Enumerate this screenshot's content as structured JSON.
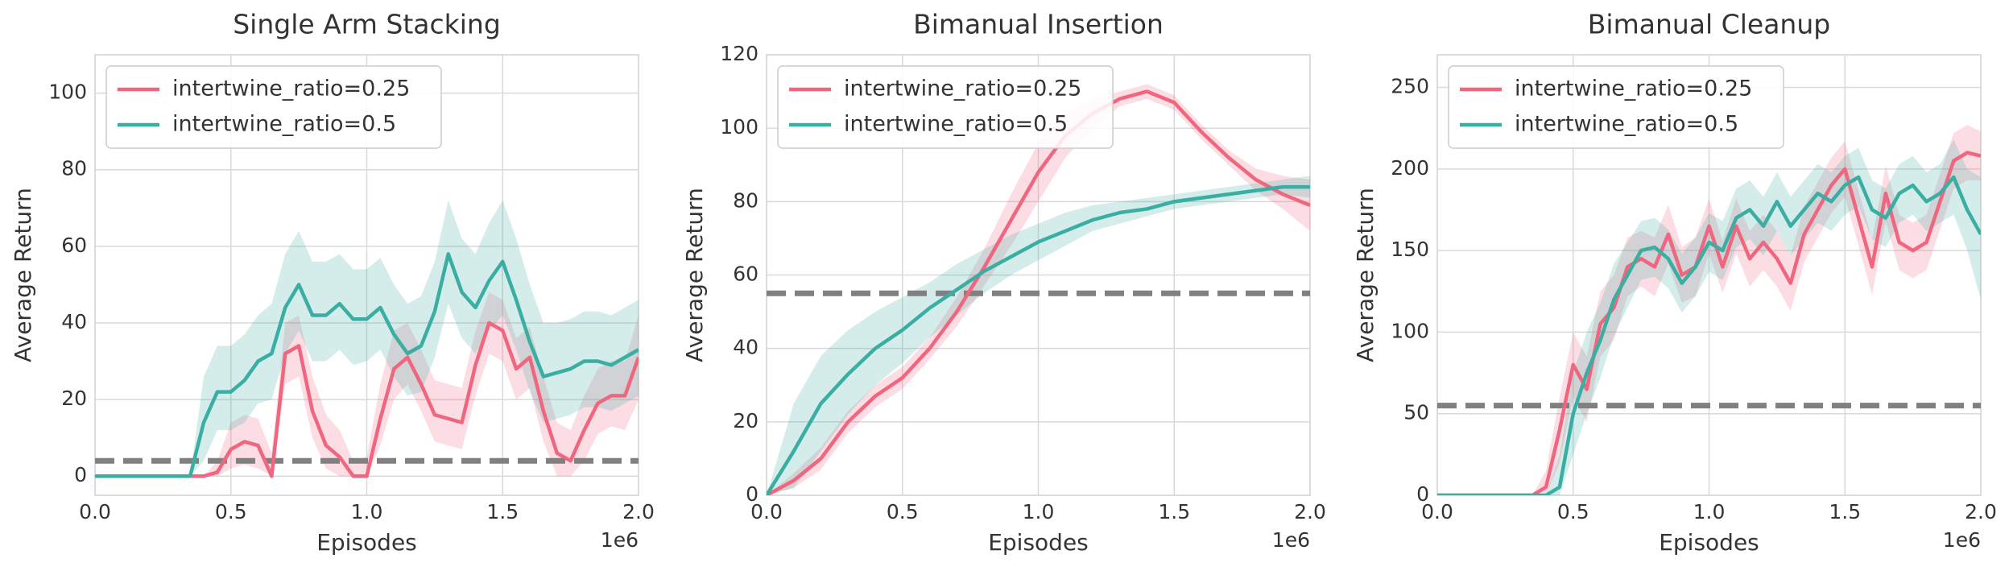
{
  "chart_data": [
    {
      "type": "line",
      "title": "Single Arm Stacking",
      "x_label": "Episodes",
      "y_label": "Average Return",
      "x_offset_label": "1e6",
      "x": [
        0,
        0.05,
        0.1,
        0.15,
        0.2,
        0.25,
        0.3,
        0.35,
        0.4,
        0.45,
        0.5,
        0.55,
        0.6,
        0.65,
        0.7,
        0.75,
        0.8,
        0.85,
        0.9,
        0.95,
        1.0,
        1.05,
        1.1,
        1.15,
        1.2,
        1.25,
        1.3,
        1.35,
        1.4,
        1.45,
        1.5,
        1.55,
        1.6,
        1.65,
        1.7,
        1.75,
        1.8,
        1.85,
        1.9,
        1.95,
        2.0
      ],
      "xlim": [
        0,
        2
      ],
      "xticks": [
        {
          "value": 0,
          "label": "0.0"
        },
        {
          "value": 0.5,
          "label": "0.5"
        },
        {
          "value": 1,
          "label": "1.0"
        },
        {
          "value": 1.5,
          "label": "1.5"
        },
        {
          "value": 2,
          "label": "2.0"
        }
      ],
      "ylim": [
        -5,
        110
      ],
      "yticks": [
        0,
        20,
        40,
        60,
        80,
        100
      ],
      "grid": true,
      "legend": "upper left",
      "hline": {
        "value": 4,
        "color": "#808080"
      },
      "series": [
        {
          "name": "intertwine_ratio=0.25",
          "color": "#f0667f",
          "values": [
            0,
            0,
            0,
            0,
            0,
            0,
            0,
            0,
            0,
            1,
            7,
            9,
            8,
            0,
            32,
            34,
            17,
            8,
            5,
            0,
            0,
            15,
            28,
            31,
            24,
            16,
            15,
            14,
            29,
            40,
            38,
            28,
            31,
            17,
            6,
            4,
            12,
            19,
            21,
            21,
            31
          ],
          "lower": [
            0,
            0,
            0,
            0,
            0,
            0,
            0,
            0,
            0,
            0,
            2,
            3,
            2,
            0,
            24,
            26,
            10,
            2,
            0,
            0,
            0,
            8,
            20,
            24,
            17,
            9,
            8,
            7,
            21,
            32,
            30,
            20,
            23,
            9,
            0,
            0,
            4,
            11,
            13,
            12,
            20
          ],
          "upper": [
            0,
            0,
            0,
            0,
            0,
            0,
            0,
            0,
            0,
            4,
            14,
            16,
            15,
            6,
            40,
            42,
            26,
            16,
            12,
            4,
            5,
            24,
            38,
            40,
            33,
            25,
            24,
            23,
            38,
            48,
            46,
            36,
            39,
            26,
            14,
            12,
            21,
            28,
            30,
            30,
            42
          ]
        },
        {
          "name": "intertwine_ratio=0.5",
          "color": "#3aaea3",
          "values": [
            0,
            0,
            0,
            0,
            0,
            0,
            0,
            0,
            14,
            22,
            22,
            25,
            30,
            32,
            44,
            50,
            42,
            42,
            45,
            41,
            41,
            44,
            37,
            32,
            34,
            43,
            58,
            48,
            44,
            51,
            56,
            46,
            35,
            26,
            27,
            28,
            30,
            30,
            29,
            31,
            33
          ],
          "lower": [
            0,
            0,
            0,
            0,
            0,
            0,
            0,
            0,
            4,
            12,
            12,
            14,
            19,
            20,
            32,
            38,
            30,
            30,
            33,
            29,
            30,
            33,
            26,
            21,
            22,
            31,
            45,
            36,
            32,
            38,
            42,
            33,
            22,
            14,
            15,
            16,
            18,
            18,
            17,
            19,
            21
          ],
          "upper": [
            0,
            0,
            0,
            0,
            0,
            0,
            0,
            0,
            26,
            34,
            34,
            37,
            42,
            45,
            58,
            64,
            56,
            56,
            58,
            54,
            54,
            57,
            50,
            45,
            47,
            56,
            72,
            62,
            58,
            66,
            72,
            62,
            50,
            40,
            40,
            41,
            43,
            43,
            42,
            44,
            46
          ]
        }
      ]
    },
    {
      "type": "line",
      "title": "Bimanual Insertion",
      "x_label": "Episodes",
      "y_label": "Average Return",
      "x_offset_label": "1e6",
      "x": [
        0,
        0.1,
        0.2,
        0.3,
        0.4,
        0.5,
        0.6,
        0.7,
        0.8,
        0.9,
        1.0,
        1.1,
        1.2,
        1.3,
        1.4,
        1.5,
        1.6,
        1.7,
        1.8,
        1.9,
        2.0
      ],
      "xlim": [
        0,
        2
      ],
      "xticks": [
        {
          "value": 0,
          "label": "0.0"
        },
        {
          "value": 0.5,
          "label": "0.5"
        },
        {
          "value": 1,
          "label": "1.0"
        },
        {
          "value": 1.5,
          "label": "1.5"
        },
        {
          "value": 2,
          "label": "2.0"
        }
      ],
      "ylim": [
        0,
        120
      ],
      "yticks": [
        0,
        20,
        40,
        60,
        80,
        100,
        120
      ],
      "grid": true,
      "legend": "upper left",
      "hline": {
        "value": 55,
        "color": "#808080"
      },
      "series": [
        {
          "name": "intertwine_ratio=0.25",
          "color": "#f0667f",
          "values": [
            0,
            4,
            10,
            20,
            27,
            32,
            40,
            50,
            62,
            75,
            88,
            98,
            104,
            108,
            110,
            107,
            99,
            92,
            86,
            82,
            79
          ],
          "lower": [
            0,
            2,
            7,
            17,
            24,
            29,
            37,
            46,
            57,
            68,
            80,
            92,
            100,
            106,
            108,
            105,
            97,
            90,
            83,
            78,
            72
          ],
          "upper": [
            0,
            6,
            13,
            23,
            30,
            35,
            43,
            54,
            67,
            82,
            96,
            104,
            108,
            110,
            112,
            109,
            101,
            94,
            89,
            87,
            86
          ]
        },
        {
          "name": "intertwine_ratio=0.5",
          "color": "#3aaea3",
          "values": [
            0,
            12,
            25,
            33,
            40,
            45,
            51,
            56,
            61,
            65,
            69,
            72,
            75,
            77,
            78,
            80,
            81,
            82,
            83,
            84,
            84
          ],
          "lower": [
            0,
            2,
            12,
            22,
            30,
            36,
            43,
            49,
            55,
            60,
            64,
            68,
            72,
            74,
            76,
            78,
            79,
            80,
            81,
            82,
            81
          ],
          "upper": [
            0,
            25,
            38,
            45,
            50,
            54,
            58,
            63,
            67,
            71,
            74,
            77,
            79,
            80,
            81,
            82,
            83,
            84,
            85,
            86,
            87
          ]
        }
      ]
    },
    {
      "type": "line",
      "title": "Bimanual Cleanup",
      "x_label": "Episodes",
      "y_label": "Average Return",
      "x_offset_label": "1e6",
      "x": [
        0,
        0.05,
        0.1,
        0.15,
        0.2,
        0.25,
        0.3,
        0.35,
        0.4,
        0.45,
        0.5,
        0.55,
        0.6,
        0.65,
        0.7,
        0.75,
        0.8,
        0.85,
        0.9,
        0.95,
        1.0,
        1.05,
        1.1,
        1.15,
        1.2,
        1.25,
        1.3,
        1.35,
        1.4,
        1.45,
        1.5,
        1.55,
        1.6,
        1.65,
        1.7,
        1.75,
        1.8,
        1.85,
        1.9,
        1.95,
        2.0
      ],
      "xlim": [
        0,
        2
      ],
      "xticks": [
        {
          "value": 0,
          "label": "0.0"
        },
        {
          "value": 0.5,
          "label": "0.5"
        },
        {
          "value": 1,
          "label": "1.0"
        },
        {
          "value": 1.5,
          "label": "1.5"
        },
        {
          "value": 2,
          "label": "2.0"
        }
      ],
      "ylim": [
        0,
        270
      ],
      "yticks": [
        0,
        50,
        100,
        150,
        200,
        250
      ],
      "grid": true,
      "legend": "upper left",
      "hline": {
        "value": 55,
        "color": "#808080"
      },
      "series": [
        {
          "name": "intertwine_ratio=0.25",
          "color": "#f0667f",
          "values": [
            0,
            0,
            0,
            0,
            0,
            0,
            0,
            0,
            5,
            40,
            80,
            65,
            105,
            115,
            140,
            145,
            140,
            160,
            135,
            140,
            165,
            140,
            165,
            145,
            155,
            145,
            130,
            160,
            175,
            190,
            200,
            170,
            140,
            185,
            155,
            150,
            155,
            180,
            205,
            210,
            208
          ],
          "lower": [
            0,
            0,
            0,
            0,
            0,
            0,
            0,
            0,
            0,
            20,
            60,
            45,
            85,
            95,
            122,
            128,
            122,
            142,
            118,
            122,
            148,
            124,
            148,
            128,
            138,
            128,
            113,
            143,
            158,
            173,
            183,
            153,
            123,
            168,
            138,
            133,
            138,
            163,
            188,
            193,
            193
          ],
          "upper": [
            0,
            0,
            0,
            0,
            0,
            0,
            0,
            0,
            15,
            60,
            100,
            85,
            125,
            135,
            158,
            162,
            158,
            178,
            152,
            158,
            182,
            156,
            182,
            162,
            172,
            162,
            147,
            177,
            192,
            207,
            217,
            187,
            157,
            202,
            172,
            167,
            172,
            197,
            222,
            227,
            223
          ]
        },
        {
          "name": "intertwine_ratio=0.5",
          "color": "#3aaea3",
          "values": [
            0,
            0,
            0,
            0,
            0,
            0,
            0,
            0,
            0,
            5,
            50,
            75,
            95,
            120,
            135,
            150,
            152,
            145,
            130,
            140,
            155,
            150,
            170,
            175,
            165,
            180,
            165,
            175,
            185,
            180,
            190,
            195,
            175,
            170,
            185,
            190,
            180,
            185,
            195,
            175,
            160
          ],
          "lower": [
            0,
            0,
            0,
            0,
            0,
            0,
            0,
            0,
            0,
            0,
            25,
            50,
            72,
            98,
            115,
            132,
            134,
            127,
            112,
            122,
            137,
            132,
            152,
            157,
            147,
            162,
            147,
            157,
            167,
            162,
            172,
            177,
            157,
            152,
            167,
            172,
            162,
            167,
            172,
            150,
            120
          ],
          "upper": [
            0,
            0,
            0,
            0,
            0,
            0,
            0,
            0,
            0,
            25,
            75,
            100,
            118,
            142,
            155,
            168,
            170,
            163,
            148,
            158,
            173,
            168,
            188,
            193,
            183,
            198,
            183,
            193,
            203,
            198,
            208,
            213,
            193,
            188,
            203,
            208,
            198,
            203,
            218,
            200,
            195
          ]
        }
      ]
    }
  ]
}
